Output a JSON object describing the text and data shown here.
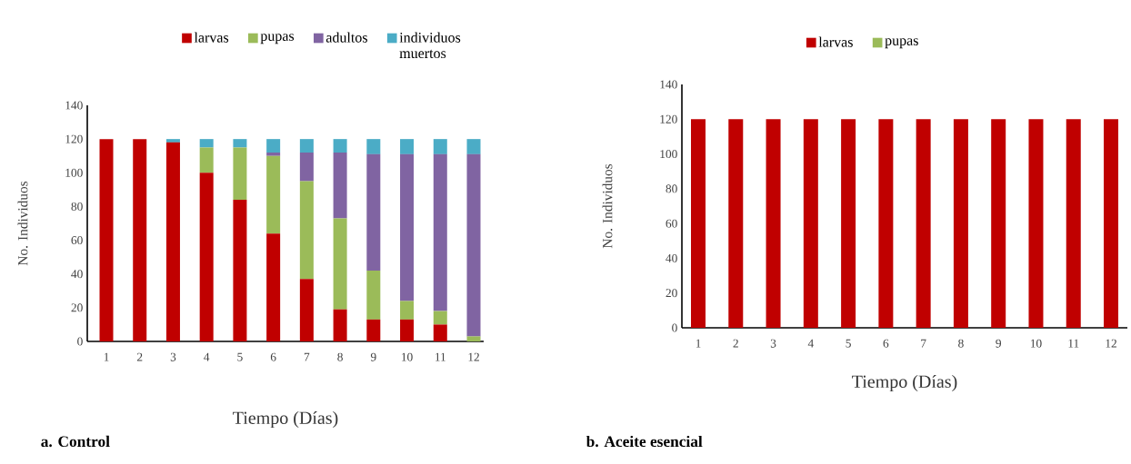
{
  "chart_data": [
    {
      "type": "bar",
      "stacked": true,
      "title": "**a. Control**",
      "xlabel": "Tiempo (Días)",
      "ylabel": "No. Individuos",
      "categories": [
        "1",
        "2",
        "3",
        "4",
        "5",
        "6",
        "7",
        "8",
        "9",
        "10",
        "11",
        "12"
      ],
      "ylim": [
        0,
        140
      ],
      "yticks": [
        0,
        20,
        40,
        60,
        80,
        100,
        120,
        140
      ],
      "legend": "top",
      "series": [
        {
          "name": "larvas",
          "color": "#c00000",
          "values": [
            120,
            120,
            118,
            100,
            84,
            64,
            37,
            19,
            13,
            13,
            10,
            0
          ]
        },
        {
          "name": "pupas",
          "color": "#9bbb59",
          "values": [
            0,
            0,
            0,
            15,
            31,
            46,
            58,
            54,
            29,
            11,
            8,
            3
          ]
        },
        {
          "name": "adultos",
          "color": "#8064a2",
          "values": [
            0,
            0,
            0,
            0,
            0,
            2,
            17,
            39,
            69,
            87,
            93,
            108
          ]
        },
        {
          "name": "individuos muertos",
          "color": "#4bacc6",
          "values": [
            0,
            0,
            2,
            5,
            5,
            8,
            8,
            8,
            9,
            9,
            9,
            9
          ]
        }
      ]
    },
    {
      "type": "bar",
      "stacked": true,
      "title": "**b. Aceite esencial**",
      "xlabel": "Tiempo (Días)",
      "ylabel": "No. Individuos",
      "categories": [
        "1",
        "2",
        "3",
        "4",
        "5",
        "6",
        "7",
        "8",
        "9",
        "10",
        "11",
        "12"
      ],
      "ylim": [
        0,
        140
      ],
      "yticks": [
        0,
        20,
        40,
        60,
        80,
        100,
        120,
        140
      ],
      "legend": "top",
      "series": [
        {
          "name": "larvas",
          "color": "#c00000",
          "values": [
            120,
            120,
            120,
            120,
            120,
            120,
            120,
            120,
            120,
            120,
            120,
            120
          ]
        },
        {
          "name": "pupas",
          "color": "#9bbb59",
          "values": [
            0,
            0,
            0,
            0,
            0,
            0,
            0,
            0,
            0,
            0,
            0,
            0
          ]
        }
      ]
    }
  ]
}
